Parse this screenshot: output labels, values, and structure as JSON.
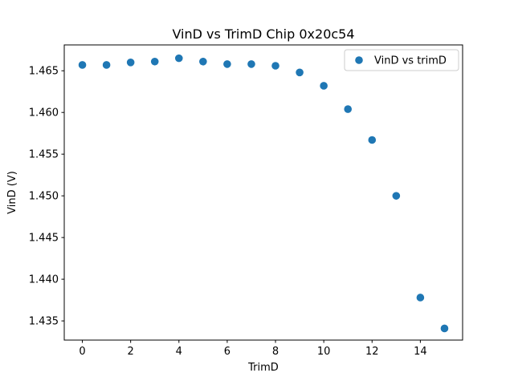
{
  "figure": {
    "kind": "matplotlib-scatter-figure",
    "background_color": "#ffffff",
    "frame_color": "#000000"
  },
  "chart_data": {
    "type": "scatter",
    "title": "VinD vs TrimD Chip 0x20c54",
    "xlabel": "TrimD",
    "ylabel": "VinD (V)",
    "legend": [
      "VinD vs trimD"
    ],
    "legend_position": "upper right",
    "marker_color": "#1f77b4",
    "marker_shape": "circle",
    "grid": false,
    "x": [
      0,
      1,
      2,
      3,
      4,
      5,
      6,
      7,
      8,
      9,
      10,
      11,
      12,
      13,
      14,
      15
    ],
    "y": [
      1.4657,
      1.4657,
      1.466,
      1.4661,
      1.4665,
      1.4661,
      1.4658,
      1.4658,
      1.4656,
      1.4648,
      1.4632,
      1.4604,
      1.4567,
      1.45,
      1.4378,
      1.4341
    ],
    "xlim": [
      -0.75,
      15.75
    ],
    "ylim": [
      1.4327,
      1.4681
    ],
    "xticks": [
      0,
      2,
      4,
      6,
      8,
      10,
      12,
      14
    ],
    "yticks": [
      1.435,
      1.44,
      1.445,
      1.45,
      1.455,
      1.46,
      1.465
    ],
    "ytick_decimals": 3
  }
}
